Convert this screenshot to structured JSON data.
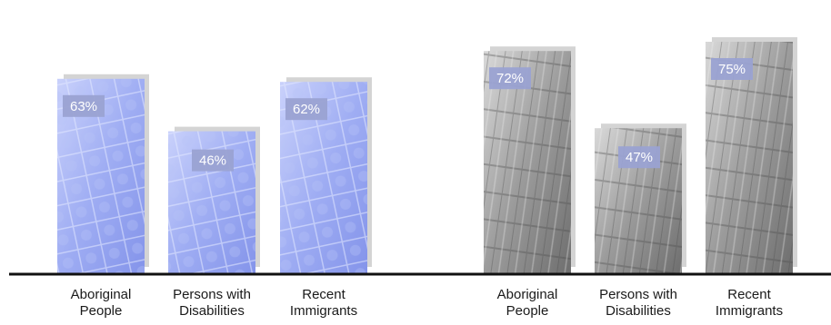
{
  "chart_data": [
    {
      "type": "bar",
      "categories": [
        "Aboriginal People",
        "Persons with Disabilities",
        "Recent Immigrants"
      ],
      "category_lines": [
        [
          "Aboriginal",
          "People"
        ],
        [
          "Persons with",
          "Disabilities"
        ],
        [
          "Recent",
          "Immigrants"
        ]
      ],
      "values": [
        63,
        46,
        62
      ],
      "data_labels": [
        "63%",
        "46%",
        "62%"
      ],
      "style": "blue-photo",
      "ylim": [
        0,
        100
      ]
    },
    {
      "type": "bar",
      "categories": [
        "Aboriginal People",
        "Persons with Disabilities",
        "Recent Immigrants"
      ],
      "category_lines": [
        [
          "Aboriginal",
          "People"
        ],
        [
          "Persons with",
          "Disabilities"
        ],
        [
          "Recent",
          "Immigrants"
        ]
      ],
      "values": [
        72,
        47,
        75
      ],
      "data_labels": [
        "72%",
        "47%",
        "75%"
      ],
      "style": "grayscale-photo",
      "ylim": [
        0,
        100
      ]
    }
  ],
  "colors": {
    "label_box": "#9aa2d2",
    "baseline": "#111111",
    "shadow": "#c9c9c9"
  }
}
